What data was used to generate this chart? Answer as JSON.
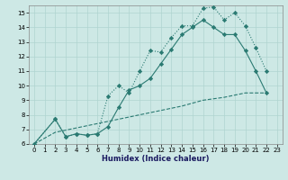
{
  "xlabel": "Humidex (Indice chaleur)",
  "bg_color": "#cde8e5",
  "grid_color": "#afd4d0",
  "line_color": "#2a7a72",
  "xlim": [
    -0.5,
    23.5
  ],
  "ylim": [
    6,
    15.5
  ],
  "xticks": [
    0,
    1,
    2,
    3,
    4,
    5,
    6,
    7,
    8,
    9,
    10,
    11,
    12,
    13,
    14,
    15,
    16,
    17,
    18,
    19,
    20,
    21,
    22,
    23
  ],
  "yticks": [
    6,
    7,
    8,
    9,
    10,
    11,
    12,
    13,
    14,
    15
  ],
  "line1_x": [
    0,
    2,
    3,
    4,
    5,
    6,
    7,
    8,
    9,
    10,
    11,
    12,
    13,
    14,
    15,
    16,
    17,
    18,
    19,
    20,
    21,
    22
  ],
  "line1_y": [
    6.0,
    7.7,
    6.5,
    6.7,
    6.6,
    6.7,
    9.3,
    10.0,
    9.5,
    11.0,
    12.4,
    12.3,
    13.3,
    14.1,
    14.1,
    15.3,
    15.4,
    14.5,
    15.0,
    14.1,
    12.6,
    11.0
  ],
  "line2_x": [
    0,
    2,
    3,
    4,
    5,
    6,
    7,
    8,
    9,
    10,
    11,
    12,
    13,
    14,
    15,
    16,
    17,
    18,
    19,
    20,
    21,
    22
  ],
  "line2_y": [
    6.0,
    7.7,
    6.5,
    6.7,
    6.6,
    6.7,
    7.2,
    8.5,
    9.7,
    10.0,
    10.5,
    11.5,
    12.5,
    13.5,
    14.0,
    14.5,
    14.0,
    13.5,
    13.5,
    12.4,
    11.0,
    9.5
  ],
  "line3_x": [
    0,
    2,
    4,
    6,
    8,
    10,
    12,
    14,
    16,
    18,
    20,
    22
  ],
  "line3_y": [
    6.0,
    6.8,
    7.1,
    7.4,
    7.7,
    8.0,
    8.3,
    8.6,
    9.0,
    9.2,
    9.5,
    9.5
  ]
}
